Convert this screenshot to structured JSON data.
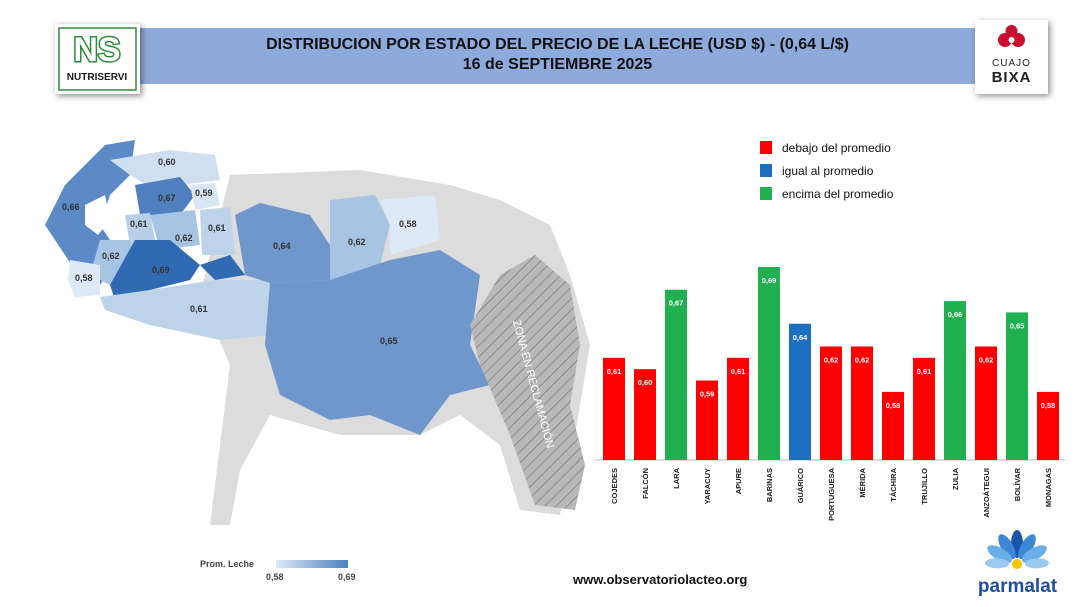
{
  "header": {
    "title_line1": "DISTRIBUCION POR ESTADO DEL PRECIO DE LA LECHE (USD $)  - (0,64 L/$)",
    "title_line2": "16 de SEPTIEMBRE 2025"
  },
  "logos": {
    "left_mark": "NS",
    "left_name": "NUTRISERVI",
    "right_top": "CUAJO",
    "right_bottom": "BIXA",
    "bottom_brand": "parmalat"
  },
  "colors": {
    "below": "#ff0000",
    "equal": "#1f6fc0",
    "above": "#20b050",
    "title_bar": "#8eaadb",
    "brand_blue": "#1f4e9e"
  },
  "legend": [
    {
      "label": "debajo del promedio",
      "status": "below"
    },
    {
      "label": "igual al promedio",
      "status": "equal"
    },
    {
      "label": "encima del promedio",
      "status": "above"
    }
  ],
  "map": {
    "region_labels": [
      "0,60",
      "0,67",
      "0,59",
      "0,66",
      "0,61",
      "0,62",
      "0,61",
      "0,64",
      "0,62",
      "0,58",
      "0,62",
      "0,69",
      "0,58",
      "0,61",
      "0,65"
    ],
    "claim_zone_label": "ZONA EN RECLAMACIÓN",
    "scale_label": "Prom. Leche",
    "scale_min": "0,58",
    "scale_max": "0,69"
  },
  "chart_data": {
    "type": "bar",
    "categories": [
      "COJEDES",
      "FALCÓN",
      "LARA",
      "YARACUY",
      "APURE",
      "BARINAS",
      "GUÁRICO",
      "PORTUGUESA",
      "MÉRIDA",
      "TÁCHIRA",
      "TRUJILLO",
      "ZULIA",
      "ANZOÁTEGUI",
      "BOLÍVAR",
      "MONAGAS"
    ],
    "values": [
      0.61,
      0.6,
      0.67,
      0.59,
      0.61,
      0.69,
      0.64,
      0.62,
      0.62,
      0.58,
      0.61,
      0.66,
      0.62,
      0.65,
      0.58
    ],
    "value_labels": [
      "0,61",
      "0,60",
      "0,67",
      "0,59",
      "0,61",
      "0,69",
      "0,64",
      "0,62",
      "0,62",
      "0,58",
      "0,61",
      "0,66",
      "0,62",
      "0,65",
      "0,58"
    ],
    "status": [
      "below",
      "below",
      "above",
      "below",
      "below",
      "above",
      "equal",
      "below",
      "below",
      "below",
      "below",
      "above",
      "below",
      "above",
      "below"
    ],
    "average": 0.64,
    "ylim": [
      0.52,
      0.69
    ]
  },
  "footer": {
    "website": "www.observatoriolacteo.org"
  }
}
